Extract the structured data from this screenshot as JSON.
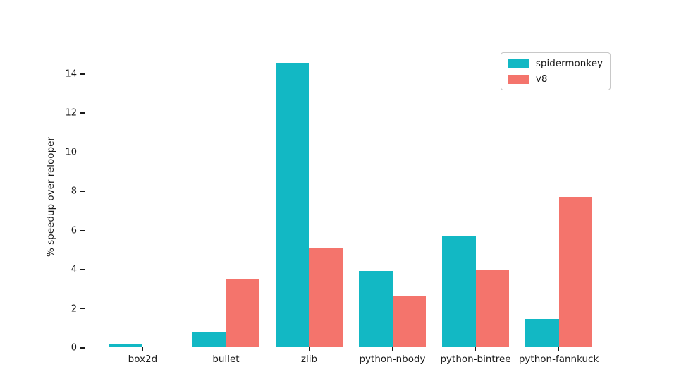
{
  "chart_data": {
    "type": "bar",
    "title": "",
    "xlabel": "",
    "ylabel": "% speedup over relooper",
    "categories": [
      "box2d",
      "bullet",
      "zlib",
      "python-nbody",
      "python-bintree",
      "python-fannkuck"
    ],
    "series": [
      {
        "name": "spidermonkey",
        "color": "#12b8c4",
        "values": [
          0.1,
          0.75,
          14.5,
          3.87,
          5.62,
          1.4
        ]
      },
      {
        "name": "v8",
        "color": "#f4746c",
        "values": [
          0.0,
          3.45,
          5.05,
          2.6,
          3.9,
          7.63
        ]
      }
    ],
    "yticks": [
      0,
      2,
      4,
      6,
      8,
      10,
      12,
      14
    ],
    "ylim": [
      0,
      15.36
    ],
    "grid": false,
    "legend_position": "upper right",
    "background_color": "#ffffff",
    "spine_color": "#1a1a1a"
  }
}
